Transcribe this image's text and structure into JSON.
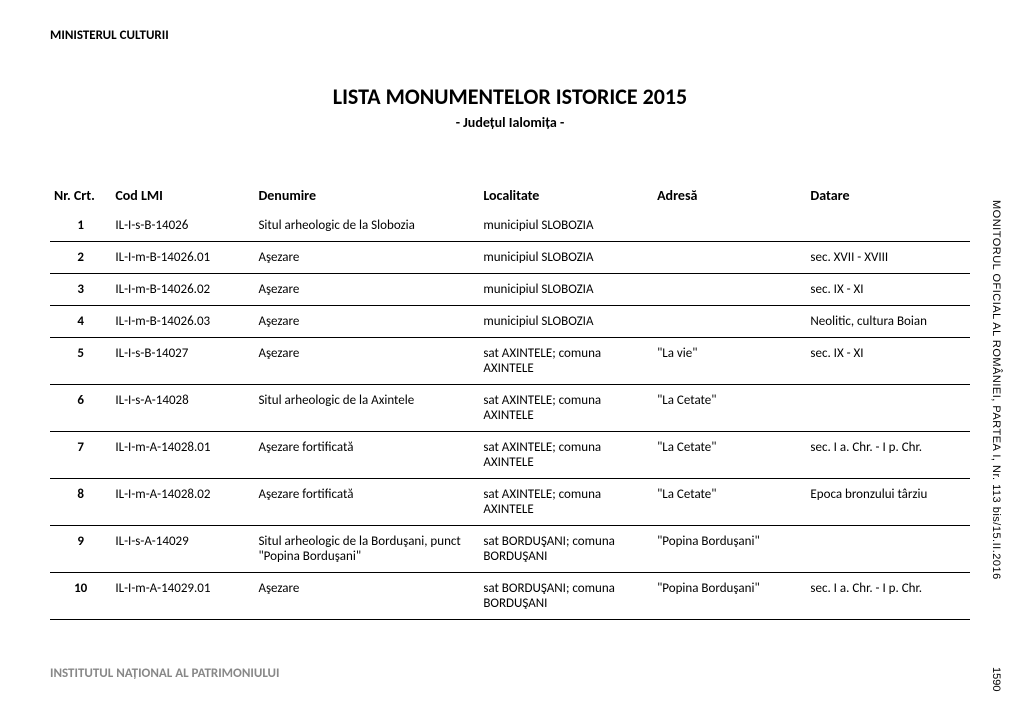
{
  "header": {
    "ministry": "MINISTERUL CULTURII"
  },
  "title": {
    "main": "LISTA MONUMENTELOR ISTORICE 2015",
    "subtitle": "- Județul Ialomița -"
  },
  "table": {
    "columns": {
      "nr": "Nr. Crt.",
      "cod": "Cod LMI",
      "denumire": "Denumire",
      "localitate": "Localitate",
      "adresa": "Adresă",
      "datare": "Datare"
    },
    "rows": [
      {
        "nr": "1",
        "cod": "IL-I-s-B-14026",
        "denumire": "Situl arheologic de la Slobozia",
        "localitate": "municipiul SLOBOZIA",
        "adresa": "",
        "datare": ""
      },
      {
        "nr": "2",
        "cod": "IL-I-m-B-14026.01",
        "denumire": "Aşezare",
        "localitate": "municipiul SLOBOZIA",
        "adresa": "",
        "datare": "sec. XVII - XVIII"
      },
      {
        "nr": "3",
        "cod": "IL-I-m-B-14026.02",
        "denumire": "Aşezare",
        "localitate": "municipiul SLOBOZIA",
        "adresa": "",
        "datare": "sec. IX - XI"
      },
      {
        "nr": "4",
        "cod": "IL-I-m-B-14026.03",
        "denumire": "Aşezare",
        "localitate": "municipiul SLOBOZIA",
        "adresa": "",
        "datare": "Neolitic, cultura Boian"
      },
      {
        "nr": "5",
        "cod": "IL-I-s-B-14027",
        "denumire": "Aşezare",
        "localitate": "sat AXINTELE; comuna AXINTELE",
        "adresa": "\"La vie\"",
        "datare": "sec. IX - XI"
      },
      {
        "nr": "6",
        "cod": "IL-I-s-A-14028",
        "denumire": "Situl arheologic de la Axintele",
        "localitate": "sat AXINTELE; comuna AXINTELE",
        "adresa": "\"La Cetate\"",
        "datare": ""
      },
      {
        "nr": "7",
        "cod": "IL-I-m-A-14028.01",
        "denumire": "Aşezare fortificată",
        "localitate": "sat AXINTELE; comuna AXINTELE",
        "adresa": "\"La Cetate\"",
        "datare": "sec. I a. Chr. - I p. Chr."
      },
      {
        "nr": "8",
        "cod": "IL-I-m-A-14028.02",
        "denumire": "Aşezare fortificată",
        "localitate": "sat AXINTELE; comuna AXINTELE",
        "adresa": "\"La Cetate\"",
        "datare": "Epoca bronzului târziu"
      },
      {
        "nr": "9",
        "cod": "IL-I-s-A-14029",
        "denumire": "Situl arheologic de la Borduşani, punct \"Popina Borduşani\"",
        "localitate": "sat BORDUŞANI; comuna BORDUŞANI",
        "adresa": "\"Popina Borduşani\"",
        "datare": ""
      },
      {
        "nr": "10",
        "cod": "IL-I-m-A-14029.01",
        "denumire": "Aşezare",
        "localitate": "sat BORDUŞANI; comuna BORDUŞANI",
        "adresa": "\"Popina Borduşani\"",
        "datare": "sec. I a. Chr. - I p. Chr."
      }
    ]
  },
  "footer": {
    "institute": "INSTITUTUL NAȚIONAL AL PATRIMONIULUI"
  },
  "side": {
    "publication": "MONITORUL OFICIAL AL ROMÂNIEI, PARTEA I, Nr. 113 bis/15.II.2016",
    "page": "1590"
  },
  "styling": {
    "body_bg": "#ffffff",
    "text_color": "#000000",
    "footer_color": "#888888",
    "border_color": "#000000",
    "title_fontsize": 22,
    "subtitle_fontsize": 14,
    "header_fontsize": 14,
    "cell_fontsize": 13,
    "font_family": "Calibri"
  }
}
